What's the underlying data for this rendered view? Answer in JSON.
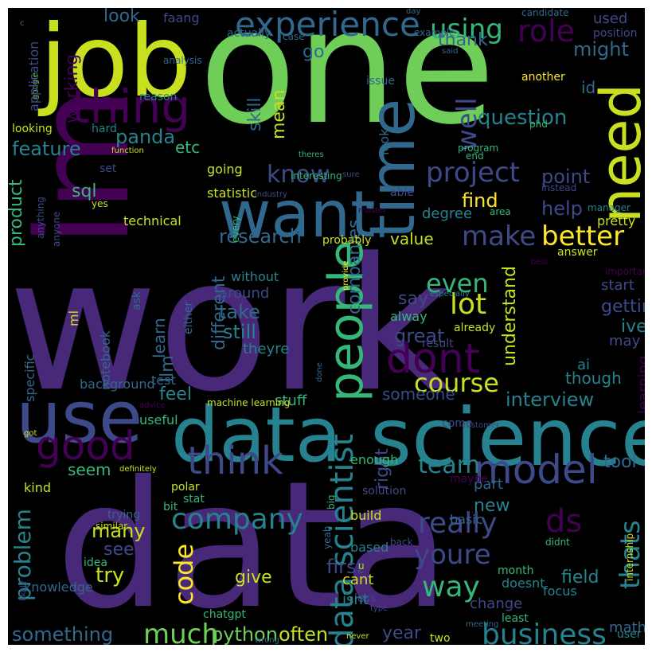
{
  "colors": {
    "background": "#000000",
    "frame": "#ffffff",
    "palette": [
      "#440154",
      "#482878",
      "#3e4989",
      "#31688e",
      "#26828e",
      "#1f9e89",
      "#35b779",
      "#6ece58",
      "#b5de2b",
      "#fde725"
    ]
  },
  "words": [
    {
      "text": "work",
      "color": "#482878"
    },
    {
      "text": "data",
      "color": "#482878"
    },
    {
      "text": "one",
      "color": "#6ece58"
    },
    {
      "text": "job",
      "color": "#c8e020"
    },
    {
      "text": "im",
      "color": "#440154"
    },
    {
      "text": "science",
      "color": "#26828e"
    },
    {
      "text": "data",
      "color": "#26828e"
    },
    {
      "text": "use",
      "color": "#3e4989"
    },
    {
      "text": "want",
      "color": "#31688e"
    },
    {
      "text": "time",
      "color": "#31688e"
    },
    {
      "text": "need",
      "color": "#c8e020"
    },
    {
      "text": "thing",
      "color": "#440154"
    },
    {
      "text": "people",
      "color": "#35b779"
    },
    {
      "text": "dont",
      "color": "#440154"
    },
    {
      "text": "good",
      "color": "#440154"
    },
    {
      "text": "think",
      "color": "#3e4989"
    },
    {
      "text": "model",
      "color": "#3e4989"
    },
    {
      "text": "experience",
      "color": "#31688e"
    },
    {
      "text": "data scientist",
      "color": "#26828e"
    },
    {
      "text": "better",
      "color": "#fde725"
    },
    {
      "text": "project",
      "color": "#3e4989"
    },
    {
      "text": "course",
      "color": "#c8e020"
    },
    {
      "text": "lot",
      "color": "#c8e020"
    },
    {
      "text": "company",
      "color": "#26828e"
    },
    {
      "text": "really",
      "color": "#3e4989"
    },
    {
      "text": "business",
      "color": "#26828e"
    },
    {
      "text": "much",
      "color": "#6ece58"
    },
    {
      "text": "youre",
      "color": "#3e4989"
    },
    {
      "text": "way",
      "color": "#35b779"
    },
    {
      "text": "team",
      "color": "#26828e"
    },
    {
      "text": "role",
      "color": "#440154"
    },
    {
      "text": "make",
      "color": "#3e4989"
    },
    {
      "text": "even",
      "color": "#35b779"
    },
    {
      "text": "using",
      "color": "#35b779"
    },
    {
      "text": "well",
      "color": "#3e4989"
    },
    {
      "text": "ds",
      "color": "#440154"
    },
    {
      "text": "thats",
      "color": "#26828e"
    },
    {
      "text": "code",
      "color": "#fde725"
    },
    {
      "text": "know",
      "color": "#3e4989"
    },
    {
      "text": "question",
      "color": "#26828e"
    },
    {
      "text": "research",
      "color": "#31688e"
    },
    {
      "text": "interview",
      "color": "#26828e"
    },
    {
      "text": "problem",
      "color": "#26828e"
    },
    {
      "text": "take",
      "color": "#31688e"
    },
    {
      "text": "still",
      "color": "#26828e"
    },
    {
      "text": "panda",
      "color": "#26828e"
    },
    {
      "text": "feature",
      "color": "#26828e"
    },
    {
      "text": "find",
      "color": "#fde725"
    },
    {
      "text": "help",
      "color": "#3e4989"
    },
    {
      "text": "point",
      "color": "#3e4989"
    },
    {
      "text": "something",
      "color": "#31688e"
    },
    {
      "text": "python",
      "color": "#6ece58"
    },
    {
      "text": "often",
      "color": "#c8e020"
    },
    {
      "text": "year",
      "color": "#3e4989"
    },
    {
      "text": "first",
      "color": "#3e4989"
    },
    {
      "text": "right",
      "color": "#3e4989"
    },
    {
      "text": "great",
      "color": "#3e4989"
    },
    {
      "text": "getting",
      "color": "#3e4989"
    },
    {
      "text": "try",
      "color": "#c8e020"
    },
    {
      "text": "many",
      "color": "#c8e020"
    },
    {
      "text": "see",
      "color": "#3e4989"
    },
    {
      "text": "give",
      "color": "#c8e020"
    },
    {
      "text": "field",
      "color": "#26828e"
    },
    {
      "text": "new",
      "color": "#26828e"
    },
    {
      "text": "tool",
      "color": "#31688e"
    },
    {
      "text": "feel",
      "color": "#26828e"
    },
    {
      "text": "companies",
      "color": "#31688e"
    },
    {
      "text": "different",
      "color": "#31688e"
    },
    {
      "text": "learn",
      "color": "#31688e"
    },
    {
      "text": "llm",
      "color": "#31688e"
    },
    {
      "text": "sql",
      "color": "#35b779"
    },
    {
      "text": "product",
      "color": "#35b779"
    },
    {
      "text": "skill",
      "color": "#31688e"
    },
    {
      "text": "mean",
      "color": "#c8e020"
    },
    {
      "text": "might",
      "color": "#31688e"
    },
    {
      "text": "thank",
      "color": "#31688e"
    },
    {
      "text": "look",
      "color": "#31688e"
    },
    {
      "text": "go",
      "color": "#31688e"
    },
    {
      "text": "etc",
      "color": "#35b779"
    },
    {
      "text": "working",
      "color": "#440154"
    },
    {
      "text": "degree",
      "color": "#26828e"
    },
    {
      "text": "value",
      "color": "#c8e020"
    },
    {
      "text": "understand",
      "color": "#c8e020"
    },
    {
      "text": "say",
      "color": "#3e4989"
    },
    {
      "text": "someone",
      "color": "#3e4989"
    },
    {
      "text": "seem",
      "color": "#35b779"
    },
    {
      "text": "stuff",
      "color": "#35b779"
    },
    {
      "text": "ive",
      "color": "#26828e"
    },
    {
      "text": "may",
      "color": "#3e4989"
    },
    {
      "text": "though",
      "color": "#26828e"
    },
    {
      "text": "ai",
      "color": "#26828e"
    },
    {
      "text": "learning",
      "color": "#440154"
    },
    {
      "text": "used",
      "color": "#3e4989"
    },
    {
      "text": "position",
      "color": "#3e4989"
    },
    {
      "text": "id",
      "color": "#31688e"
    },
    {
      "text": "math",
      "color": "#31688e"
    },
    {
      "text": "user",
      "color": "#26828e"
    },
    {
      "text": "look",
      "color": "#31688e"
    },
    {
      "text": "statistic",
      "color": "#c8e020"
    },
    {
      "text": "going",
      "color": "#c8e020"
    },
    {
      "text": "probably",
      "color": "#c8e020"
    },
    {
      "text": "technical",
      "color": "#c8e020"
    },
    {
      "text": "pretty",
      "color": "#c8e020"
    },
    {
      "text": "start",
      "color": "#3e4989"
    },
    {
      "text": "alway",
      "color": "#35b779"
    },
    {
      "text": "result",
      "color": "#3e4989"
    },
    {
      "text": "already",
      "color": "#c8e020"
    },
    {
      "text": "around",
      "color": "#3e4989"
    },
    {
      "text": "without",
      "color": "#26828e"
    },
    {
      "text": "theyre",
      "color": "#26828e"
    },
    {
      "text": "ml",
      "color": "#c8e020"
    },
    {
      "text": "notebook",
      "color": "#31688e"
    },
    {
      "text": "specific",
      "color": "#31688e"
    },
    {
      "text": "background",
      "color": "#31688e"
    },
    {
      "text": "test",
      "color": "#31688e"
    },
    {
      "text": "useful",
      "color": "#35b779"
    },
    {
      "text": "kind",
      "color": "#c8e020"
    },
    {
      "text": "enough",
      "color": "#35b779"
    },
    {
      "text": "part",
      "color": "#31688e"
    },
    {
      "text": "polar",
      "color": "#c8e020"
    },
    {
      "text": "stat",
      "color": "#35b779"
    },
    {
      "text": "bit",
      "color": "#35b779"
    },
    {
      "text": "trying",
      "color": "#31688e"
    },
    {
      "text": "idea",
      "color": "#35b779"
    },
    {
      "text": "knowledge",
      "color": "#31688e"
    },
    {
      "text": "chatgpt",
      "color": "#35b779"
    },
    {
      "text": "less",
      "color": "#3e4989"
    },
    {
      "text": "month",
      "color": "#35b779"
    },
    {
      "text": "least",
      "color": "#35b779"
    },
    {
      "text": "two",
      "color": "#c8e020"
    },
    {
      "text": "change",
      "color": "#3e4989"
    },
    {
      "text": "cant",
      "color": "#c8e020"
    },
    {
      "text": "isnt",
      "color": "#26828e"
    },
    {
      "text": "doesnt",
      "color": "#26828e"
    },
    {
      "text": "focus",
      "color": "#26828e"
    },
    {
      "text": "based",
      "color": "#26828e"
    },
    {
      "text": "build",
      "color": "#c8e020"
    },
    {
      "text": "basic",
      "color": "#31688e"
    },
    {
      "text": "maybe",
      "color": "#440154"
    },
    {
      "text": "solution",
      "color": "#3e4989"
    },
    {
      "text": "come",
      "color": "#3e4989"
    },
    {
      "text": "faang",
      "color": "#3e4989"
    },
    {
      "text": "actually",
      "color": "#31688e"
    },
    {
      "text": "case",
      "color": "#31688e"
    },
    {
      "text": "example",
      "color": "#31688e"
    },
    {
      "text": "day",
      "color": "#31688e"
    },
    {
      "text": "candidate",
      "color": "#31688e"
    },
    {
      "text": "said",
      "color": "#31688e"
    },
    {
      "text": "analysis",
      "color": "#31688e"
    },
    {
      "text": "c",
      "color": "#31688e"
    },
    {
      "text": "google",
      "color": "#6ece58"
    },
    {
      "text": "application",
      "color": "#3e4989"
    },
    {
      "text": "looking",
      "color": "#c8e020"
    },
    {
      "text": "hard",
      "color": "#26828e"
    },
    {
      "text": "reason",
      "color": "#26828e"
    },
    {
      "text": "function",
      "color": "#c8e020"
    },
    {
      "text": "interesting",
      "color": "#35b779"
    },
    {
      "text": "issue",
      "color": "#31688e"
    },
    {
      "text": "another",
      "color": "#fde725"
    },
    {
      "text": "phd",
      "color": "#35b779"
    },
    {
      "text": "program",
      "color": "#35b779"
    },
    {
      "text": "end",
      "color": "#35b779"
    },
    {
      "text": "theres",
      "color": "#35b779"
    },
    {
      "text": "sure",
      "color": "#3e4989"
    },
    {
      "text": "set",
      "color": "#3e4989"
    },
    {
      "text": "yes",
      "color": "#c8e020"
    },
    {
      "text": "anyone",
      "color": "#3e4989"
    },
    {
      "text": "anything",
      "color": "#3e4989"
    },
    {
      "text": "industry",
      "color": "#3e4989"
    },
    {
      "text": "able",
      "color": "#3e4989"
    },
    {
      "text": "master",
      "color": "#440154"
    },
    {
      "text": "area",
      "color": "#35b779"
    },
    {
      "text": "every",
      "color": "#35b779"
    },
    {
      "text": "instead",
      "color": "#3e4989"
    },
    {
      "text": "manager",
      "color": "#26828e"
    },
    {
      "text": "answer",
      "color": "#c8e020"
    },
    {
      "text": "best",
      "color": "#440154"
    },
    {
      "text": "provide",
      "color": "#fde725"
    },
    {
      "text": "important",
      "color": "#440154"
    },
    {
      "text": "ask",
      "color": "#31688e"
    },
    {
      "text": "especially",
      "color": "#26828e"
    },
    {
      "text": "either",
      "color": "#31688e"
    },
    {
      "text": "done",
      "color": "#31688e"
    },
    {
      "text": "machine learning",
      "color": "#c8e020"
    },
    {
      "text": "advice",
      "color": "#440154"
    },
    {
      "text": "got",
      "color": "#c8e020"
    },
    {
      "text": "customer",
      "color": "#3e4989"
    },
    {
      "text": "definitely",
      "color": "#c8e020"
    },
    {
      "text": "big",
      "color": "#35b779"
    },
    {
      "text": "similar",
      "color": "#c8e020"
    },
    {
      "text": "yeah",
      "color": "#31688e"
    },
    {
      "text": "u",
      "color": "#c8e020"
    },
    {
      "text": "back",
      "color": "#3e4989"
    },
    {
      "text": "didnt",
      "color": "#35b779"
    },
    {
      "text": "internship",
      "color": "#c8e020"
    },
    {
      "text": "likely",
      "color": "#3e4989"
    },
    {
      "text": "type",
      "color": "#3e4989"
    },
    {
      "text": "meeting",
      "color": "#31688e"
    },
    {
      "text": "wrong",
      "color": "#31688e"
    },
    {
      "text": "never",
      "color": "#c8e020"
    },
    {
      "text": "career",
      "color": "#440154"
    },
    {
      "text": "level",
      "color": "#31688e"
    }
  ]
}
